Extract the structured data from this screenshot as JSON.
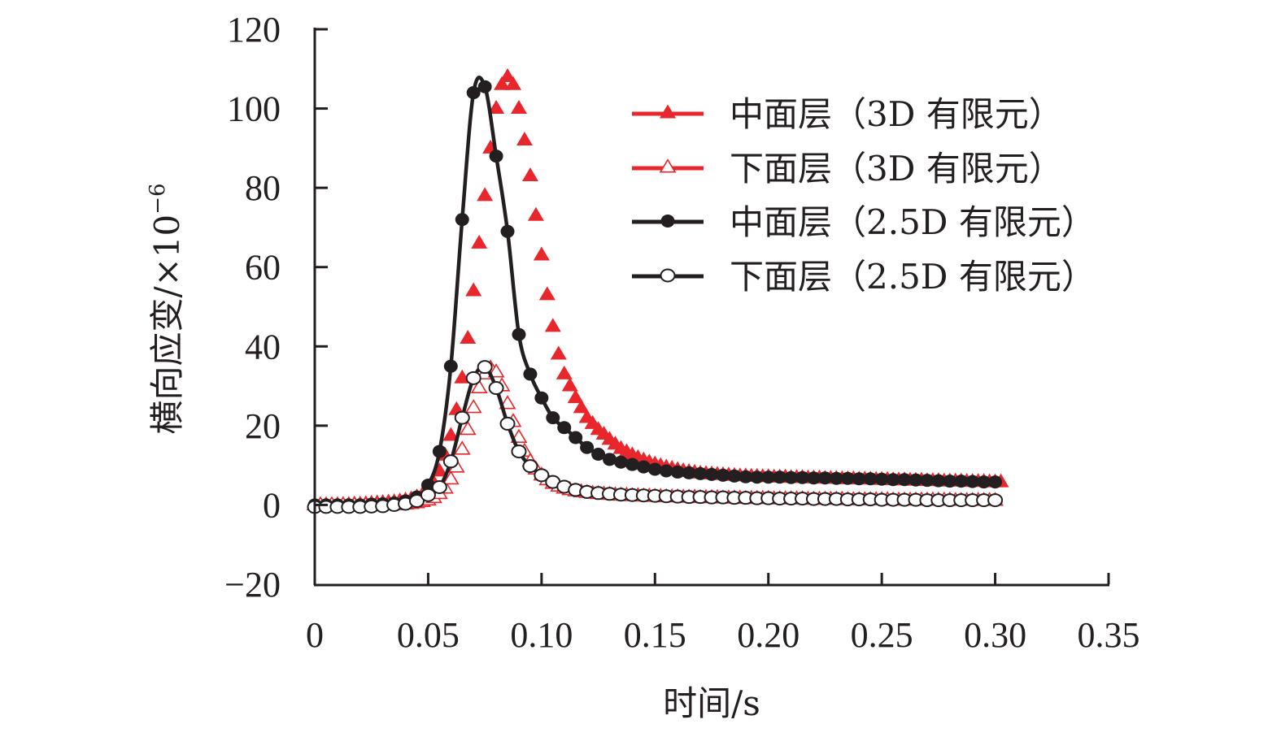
{
  "chart_data": {
    "type": "line",
    "title": "",
    "xlabel": "时间/s",
    "ylabel": "横向应变/×10",
    "ylabel_exponent": "−6",
    "xlim": [
      0,
      0.35
    ],
    "ylim": [
      -20,
      120
    ],
    "x_ticks": [
      0,
      0.05,
      0.1,
      0.15,
      0.2,
      0.25,
      0.3,
      0.35
    ],
    "x_tick_labels": [
      "0",
      "0.05",
      "0.10",
      "0.15",
      "0.20",
      "0.25",
      "0.30",
      "0.35"
    ],
    "y_ticks": [
      -20,
      0,
      20,
      40,
      60,
      80,
      100,
      120
    ],
    "y_tick_labels": [
      "−20",
      "0",
      "20",
      "40",
      "60",
      "80",
      "100",
      "120"
    ],
    "grid": false,
    "legend_position": "top-right",
    "colors": {
      "red": "#e8262b",
      "black": "#231f20",
      "axis": "#231f20"
    },
    "series": [
      {
        "name": "中面层（3D 有限元）",
        "marker": "triangle-filled",
        "color": "#e8262b",
        "x_step": 0.0025,
        "values": [
          0,
          0,
          0,
          0,
          0,
          0.1,
          0.1,
          0.2,
          0.2,
          0.3,
          0.4,
          0.5,
          0.6,
          0.7,
          0.8,
          1.0,
          1.2,
          1.5,
          2.0,
          2.6,
          3.5,
          5.5,
          8.5,
          12.5,
          17.5,
          24,
          32,
          42,
          54,
          66,
          78,
          90,
          100,
          106,
          108,
          106,
          100,
          92,
          83,
          73,
          63,
          53,
          45,
          38,
          33,
          30,
          27,
          24.5,
          22,
          20.5,
          19,
          17.8,
          16.5,
          15.3,
          14.2,
          13.4,
          12.6,
          11.9,
          11.3,
          10.8,
          10.3,
          9.9,
          9.5,
          9.2,
          8.9,
          8.6,
          8.4,
          8.2,
          8.0,
          7.9,
          7.8,
          7.7,
          7.6,
          7.5,
          7.4,
          7.3,
          7.3,
          7.2,
          7.2,
          7.1,
          7.1,
          7.0,
          7.0,
          7.0,
          6.9,
          6.9,
          6.9,
          6.8,
          6.8,
          6.8,
          6.7,
          6.7,
          6.7,
          6.6,
          6.6,
          6.6,
          6.5,
          6.5,
          6.5,
          6.4,
          6.4,
          6.4,
          6.3,
          6.3,
          6.3,
          6.2,
          6.2,
          6.2,
          6.1,
          6.1,
          6.1,
          6.0,
          6.0,
          6.0,
          6.0,
          5.9,
          5.9,
          5.9,
          5.9,
          5.8,
          5.8,
          5.8
        ]
      },
      {
        "name": "下面层（3D 有限元）",
        "marker": "triangle-open",
        "color": "#e8262b",
        "x_step": 0.0025,
        "values": [
          0,
          0,
          0,
          0,
          0,
          0,
          0,
          0,
          0,
          0,
          0,
          0,
          0,
          0,
          0,
          0.1,
          0.2,
          0.3,
          0.5,
          0.8,
          1.2,
          1.8,
          2.8,
          4.2,
          6.5,
          9.5,
          14,
          19,
          24.5,
          29.5,
          33,
          34.5,
          33.5,
          30,
          25.5,
          21,
          17,
          13.5,
          11,
          9,
          7.5,
          6.3,
          5.4,
          4.7,
          4.2,
          3.8,
          3.5,
          3.3,
          3.1,
          2.9,
          2.8,
          2.7,
          2.6,
          2.5,
          2.4,
          2.4,
          2.3,
          2.3,
          2.2,
          2.2,
          2.1,
          2.1,
          2.0,
          2.0,
          2.0,
          1.9,
          1.9,
          1.9,
          1.8,
          1.8,
          1.8,
          1.8,
          1.7,
          1.7,
          1.7,
          1.7,
          1.6,
          1.6,
          1.6,
          1.6,
          1.6,
          1.5,
          1.5,
          1.5,
          1.5,
          1.5,
          1.5,
          1.4,
          1.4,
          1.4,
          1.4,
          1.4,
          1.4,
          1.4,
          1.3,
          1.3,
          1.3,
          1.3,
          1.3,
          1.3,
          1.3,
          1.3,
          1.2,
          1.2,
          1.2,
          1.2,
          1.2,
          1.2,
          1.2,
          1.2,
          1.2,
          1.2,
          1.2,
          1.1,
          1.1,
          1.1,
          1.1,
          1.1,
          1.1,
          1.1,
          1.1
        ]
      },
      {
        "name": "中面层（2.5D 有限元）",
        "marker": "circle-filled",
        "color": "#231f20",
        "x_step": 0.005,
        "values": [
          0,
          0,
          0,
          0,
          0,
          0.2,
          0.3,
          0.5,
          1.0,
          2.0,
          5.0,
          13.5,
          35,
          72,
          104,
          105.5,
          88,
          69,
          43,
          33,
          27,
          22,
          19.5,
          17,
          14.5,
          12.8,
          11.5,
          10.8,
          10.2,
          9.6,
          9.0,
          8.6,
          8.3,
          8.1,
          7.9,
          7.7,
          7.5,
          7.3,
          7.1,
          7.0,
          7.0,
          7.0,
          6.9,
          6.9,
          6.8,
          6.8,
          6.7,
          6.7,
          6.6,
          6.6,
          6.5,
          6.4,
          6.4,
          6.3,
          6.2,
          6.1,
          6.0,
          6.0,
          5.9,
          5.8,
          5.8
        ]
      },
      {
        "name": "下面层（2.5D 有限元）",
        "marker": "circle-open",
        "color": "#231f20",
        "x_step": 0.005,
        "values": [
          -0.5,
          -0.5,
          -0.5,
          -0.5,
          -0.5,
          -0.4,
          -0.3,
          0,
          0.3,
          1.0,
          2.5,
          4.5,
          11,
          22,
          32,
          34.8,
          29.5,
          20.5,
          13.5,
          9.8,
          7.5,
          5.8,
          4.6,
          3.8,
          3.3,
          3.0,
          2.8,
          2.6,
          2.5,
          2.4,
          2.3,
          2.2,
          2.1,
          2.0,
          2.0,
          1.9,
          1.9,
          1.8,
          1.8,
          1.7,
          1.7,
          1.6,
          1.6,
          1.6,
          1.5,
          1.5,
          1.5,
          1.4,
          1.4,
          1.4,
          1.3,
          1.3,
          1.3,
          1.3,
          1.2,
          1.2,
          1.2,
          1.2,
          1.2,
          1.2,
          1.2
        ]
      }
    ]
  }
}
